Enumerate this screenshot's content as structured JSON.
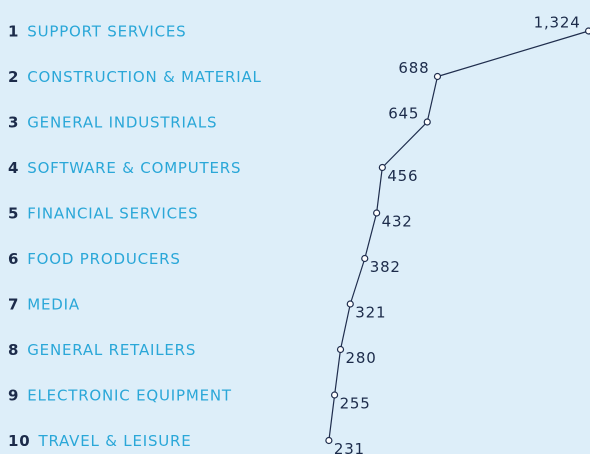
{
  "chart_data": {
    "type": "line",
    "ranks": [
      1,
      2,
      3,
      4,
      5,
      6,
      7,
      8,
      9,
      10
    ],
    "categories": [
      "SUPPORT SERVICES",
      "CONSTRUCTION & MATERIAL",
      "GENERAL INDUSTRIALS",
      "SOFTWARE & COMPUTERS",
      "FINANCIAL SERVICES",
      "FOOD PRODUCERS",
      "MEDIA",
      "GENERAL RETAILERS",
      "ELECTRONIC EQUIPMENT",
      "TRAVEL & LEISURE"
    ],
    "values": [
      1324,
      688,
      645,
      456,
      432,
      382,
      321,
      280,
      255,
      231
    ],
    "value_labels": [
      "1,324",
      "688",
      "645",
      "456",
      "432",
      "382",
      "321",
      "280",
      "255",
      "231"
    ],
    "xlim": [
      0,
      1330
    ],
    "color": "#1f2d4d"
  }
}
